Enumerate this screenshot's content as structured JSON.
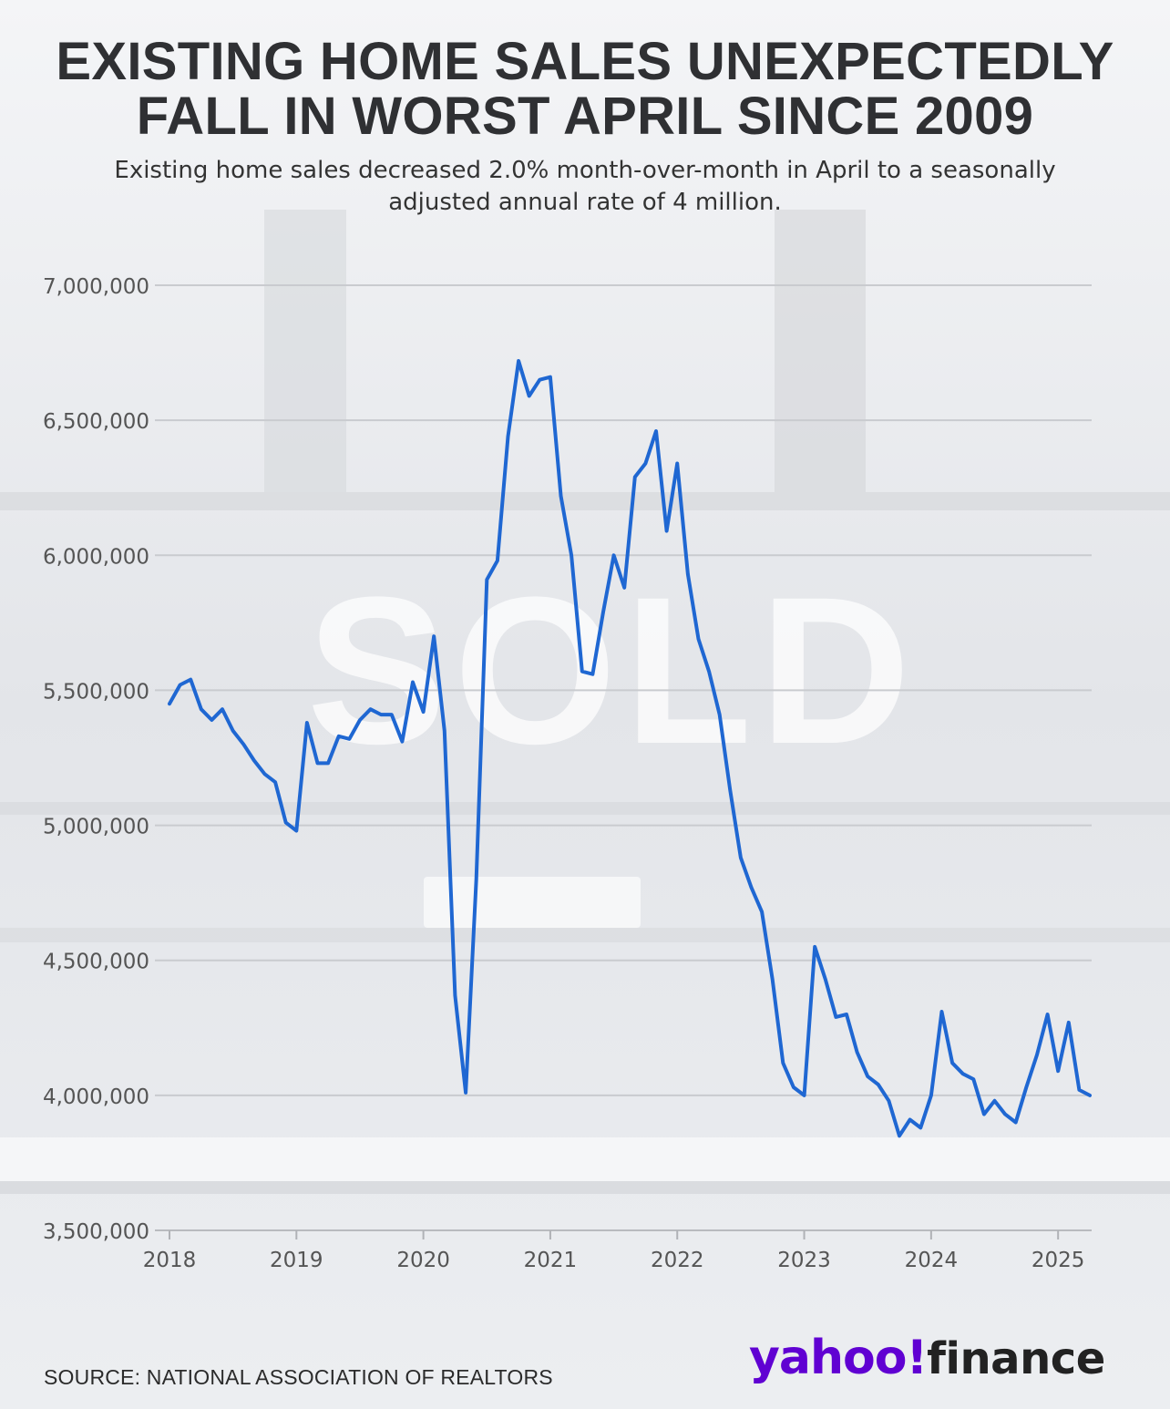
{
  "header": {
    "title": "EXISTING HOME SALES UNEXPECTEDLY FALL IN WORST APRIL SINCE 2009",
    "subtitle": "Existing home sales decreased 2.0% month-over-month in April to a seasonally adjusted annual rate of 4 million."
  },
  "background": {
    "watermark": "SOLD"
  },
  "footer": {
    "source": "SOURCE: NATIONAL ASSOCIATION OF REALTORS",
    "brand_main": "yahoo!",
    "brand_suffix": "finance"
  },
  "colors": {
    "line": "#1f67d2",
    "brand": "#6001d2",
    "grid": "#c9cbcf",
    "title": "#2f3033"
  },
  "chart_data": {
    "type": "line",
    "title": "EXISTING HOME SALES UNEXPECTEDLY FALL IN WORST APRIL SINCE 2009",
    "xlabel": "",
    "ylabel": "",
    "x_start": "2018-01",
    "x_ticks": [
      "2018",
      "2019",
      "2020",
      "2021",
      "2022",
      "2023",
      "2024",
      "2025"
    ],
    "y_ticks": [
      3500000,
      4000000,
      4500000,
      5000000,
      5500000,
      6000000,
      6500000,
      7000000
    ],
    "y_tick_labels": [
      "3,500,000",
      "4,000,000",
      "4,500,000",
      "5,000,000",
      "5,500,000",
      "6,000,000",
      "6,500,000",
      "7,000,000"
    ],
    "ylim": [
      3500000,
      7000000
    ],
    "xlim": [
      "2018-01",
      "2025-04"
    ],
    "grid": true,
    "series": [
      {
        "values": [
          5450000,
          5520000,
          5540000,
          5430000,
          5390000,
          5430000,
          5350000,
          5300000,
          5240000,
          5190000,
          5160000,
          5010000,
          4980000,
          5380000,
          5230000,
          5230000,
          5330000,
          5320000,
          5390000,
          5430000,
          5410000,
          5410000,
          5310000,
          5530000,
          5420000,
          5700000,
          5350000,
          4370000,
          4010000,
          4800000,
          5910000,
          5980000,
          6440000,
          6720000,
          6590000,
          6650000,
          6660000,
          6220000,
          6000000,
          5570000,
          5560000,
          5790000,
          6000000,
          5880000,
          6290000,
          6340000,
          6460000,
          6090000,
          6340000,
          5930000,
          5690000,
          5570000,
          5410000,
          5130000,
          4880000,
          4770000,
          4680000,
          4430000,
          4120000,
          4030000,
          4000000,
          4550000,
          4430000,
          4290000,
          4300000,
          4160000,
          4070000,
          4040000,
          3980000,
          3850000,
          3910000,
          3880000,
          4000000,
          4310000,
          4120000,
          4080000,
          4060000,
          3930000,
          3980000,
          3930000,
          3900000,
          4030000,
          4150000,
          4300000,
          4090000,
          4270000,
          4020000,
          4000000
        ]
      }
    ]
  }
}
